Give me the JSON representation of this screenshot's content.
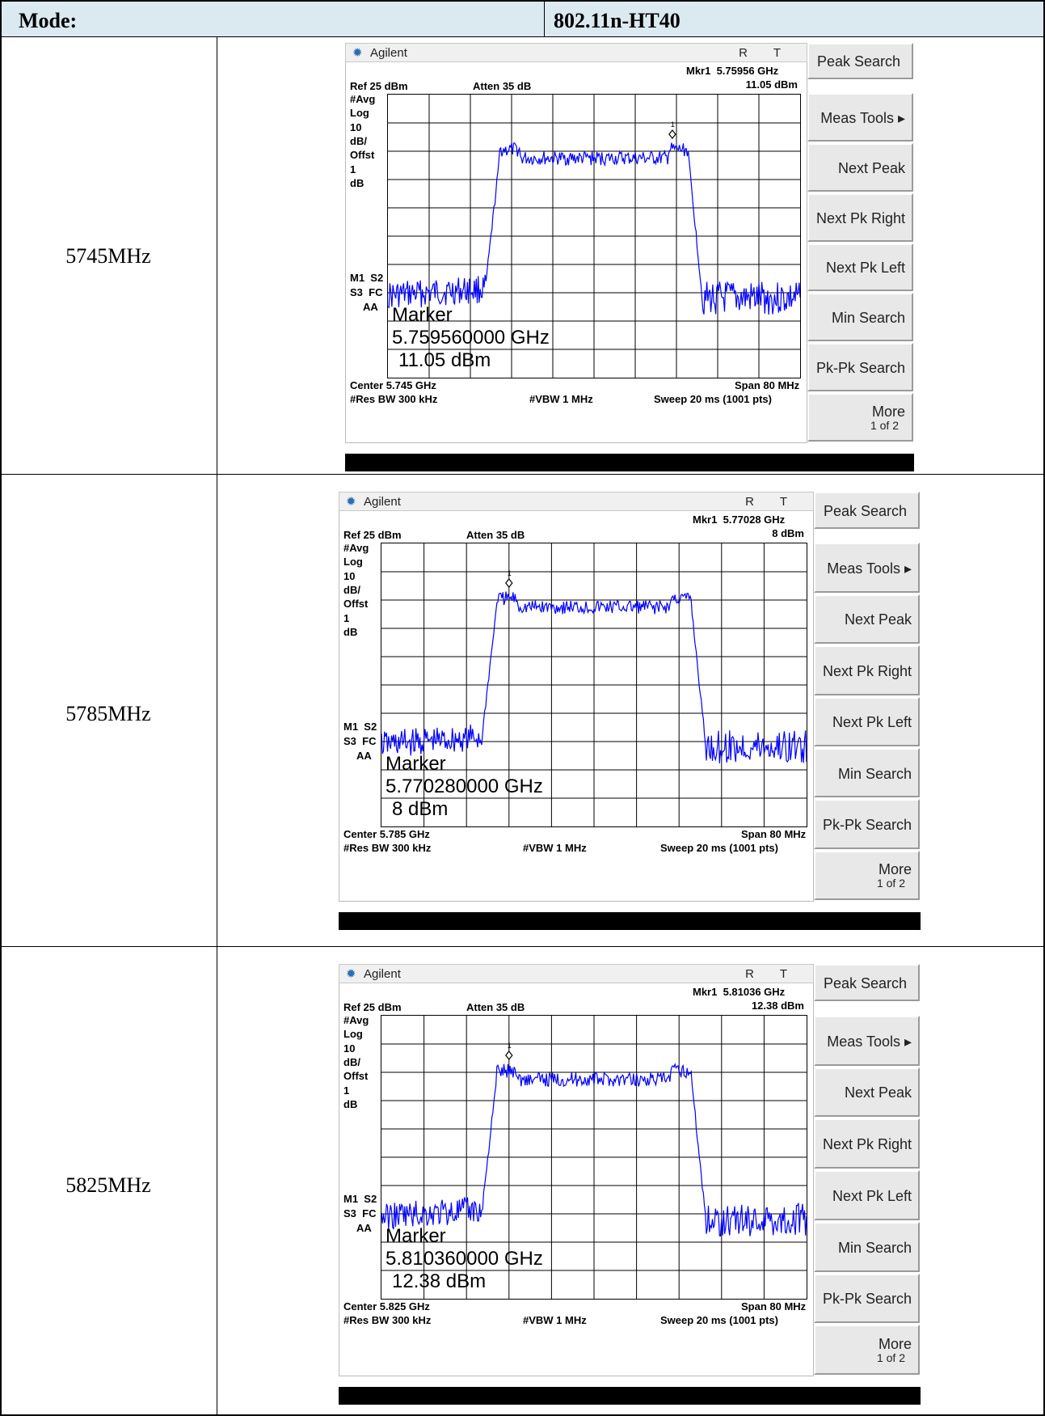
{
  "header": {
    "mode_label": "Mode:",
    "mode_value": "802.11n-HT40"
  },
  "rows": [
    {
      "freq": "5745MHz",
      "screen": {
        "brand": "Agilent",
        "status": "R T",
        "mkr_line1": "Mkr1  5.75956 GHz",
        "mkr_line2": "11.05 dBm",
        "ref": "Ref 25 dBm",
        "atten": "Atten 35 dB",
        "left_labels": [
          "#Avg",
          "Log",
          "10",
          "dB/",
          "Offst",
          "1",
          "dB"
        ],
        "left_lower": [
          "M1  S2",
          "S3  FC",
          "AA"
        ],
        "marker_title": "Marker",
        "marker_freq": "5.759560000 GHz",
        "marker_level": "11.05 dBm",
        "center": "Center 5.745 GHz",
        "span": "Span 80 MHz",
        "res_bw": "#Res BW 300 kHz",
        "vbw": "#VBW 1 MHz",
        "sweep": "Sweep 20 ms (1001 pts)",
        "marker_num": "1",
        "peak_frac": 0.69,
        "softkeys": [
          "Peak Search",
          "Meas Tools ▸",
          "Next Peak",
          "Next Pk Right",
          "Next Pk Left",
          "Min Search",
          "Pk-Pk Search",
          "More",
          "1 of 2"
        ]
      }
    },
    {
      "freq": "5785MHz",
      "screen": {
        "brand": "Agilent",
        "status": "R T",
        "mkr_line1": "Mkr1  5.77028 GHz",
        "mkr_line2": "8 dBm",
        "ref": "Ref 25 dBm",
        "atten": "Atten 35 dB",
        "left_labels": [
          "#Avg",
          "Log",
          "10",
          "dB/",
          "Offst",
          "1",
          "dB"
        ],
        "left_lower": [
          "M1  S2",
          "S3  FC",
          "AA"
        ],
        "marker_title": "Marker",
        "marker_freq": "5.770280000 GHz",
        "marker_level": "8 dBm",
        "center": "Center 5.785 GHz",
        "span": "Span 80 MHz",
        "res_bw": "#Res BW 300 kHz",
        "vbw": "#VBW 1 MHz",
        "sweep": "Sweep 20 ms (1001 pts)",
        "marker_num": "1",
        "peak_frac": 0.3,
        "softkeys": [
          "Peak Search",
          "Meas Tools ▸",
          "Next Peak",
          "Next Pk Right",
          "Next Pk Left",
          "Min Search",
          "Pk-Pk Search",
          "More",
          "1 of 2"
        ]
      }
    },
    {
      "freq": "5825MHz",
      "screen": {
        "brand": "Agilent",
        "status": "R T",
        "mkr_line1": "Mkr1  5.81036 GHz",
        "mkr_line2": "12.38 dBm",
        "ref": "Ref 25 dBm",
        "atten": "Atten 35 dB",
        "left_labels": [
          "#Avg",
          "Log",
          "10",
          "dB/",
          "Offst",
          "1",
          "dB"
        ],
        "left_lower": [
          "M1  S2",
          "S3  FC",
          "AA"
        ],
        "marker_title": "Marker",
        "marker_freq": "5.810360000 GHz",
        "marker_level": "12.38 dBm",
        "center": "Center 5.825 GHz",
        "span": "Span 80 MHz",
        "res_bw": "#Res BW 300 kHz",
        "vbw": "#VBW 1 MHz",
        "sweep": "Sweep 20 ms (1001 pts)",
        "marker_num": "1",
        "peak_frac": 0.3,
        "softkeys": [
          "Peak Search",
          "Meas Tools ▸",
          "Next Peak",
          "Next Pk Right",
          "Next Pk Left",
          "Min Search",
          "Pk-Pk Search",
          "More",
          "1 of 2"
        ]
      }
    }
  ],
  "colors": {
    "trace": "#0000ff",
    "header_bg": "#dbe9f1",
    "status_bar": "#000000"
  }
}
